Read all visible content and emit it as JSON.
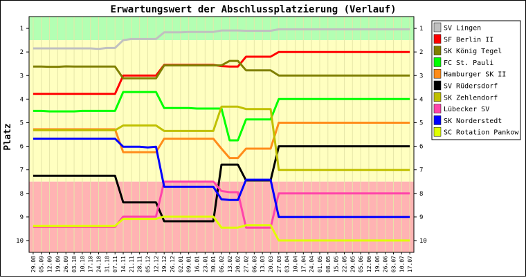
{
  "chart_data": {
    "type": "line",
    "title": "Erwartungswert der Abschlussplatzierung (Verlauf)",
    "ylabel": "Platz",
    "ylim": [
      10.5,
      0.5
    ],
    "y_ticks": [
      "1",
      "2",
      "3",
      "4",
      "5",
      "6",
      "7",
      "8",
      "9",
      "10"
    ],
    "zones": [
      {
        "from": 0.5,
        "to": 1.5,
        "color": "#b3ffb3"
      },
      {
        "from": 1.5,
        "to": 7.5,
        "color": "#ffffc0"
      },
      {
        "from": 7.5,
        "to": 10.5,
        "color": "#ffb3b3"
      }
    ],
    "categories": [
      "29.08",
      "05.09",
      "12.09",
      "19.09",
      "26.09",
      "03.10",
      "10.10",
      "17.10",
      "24.10",
      "31.10",
      "07.11",
      "14.11",
      "21.11",
      "28.11",
      "05.12",
      "12.12",
      "19.12",
      "26.12",
      "02.01",
      "09.01",
      "16.01",
      "23.01",
      "30.01",
      "06.02",
      "13.02",
      "20.02",
      "27.02",
      "06.03",
      "13.03",
      "20.03",
      "27.03",
      "03.04",
      "10.04",
      "17.04",
      "24.04",
      "01.05",
      "08.05",
      "15.05",
      "22.05",
      "29.05",
      "05.06",
      "12.06",
      "19.06",
      "26.06",
      "03.07",
      "10.07",
      "17.07"
    ],
    "series": [
      {
        "name": "SV Lingen",
        "color": "#c0c0c0",
        "values": [
          1.85,
          1.85,
          1.85,
          1.85,
          1.85,
          1.85,
          1.85,
          1.85,
          1.87,
          1.83,
          1.83,
          1.5,
          1.45,
          1.45,
          1.45,
          1.45,
          1.17,
          1.17,
          1.17,
          1.15,
          1.15,
          1.15,
          1.15,
          1.09,
          1.09,
          1.09,
          1.1,
          1.1,
          1.1,
          1.1,
          1.04,
          1.04,
          1.04,
          1.04,
          1.04,
          1.04,
          1.04,
          1.04,
          1.04,
          1.04,
          1.04,
          1.04,
          1.04,
          1.04,
          1.04,
          1.04,
          1.04
        ]
      },
      {
        "name": "SF Berlin II",
        "color": "#ff0000",
        "values": [
          3.78,
          3.78,
          3.78,
          3.78,
          3.78,
          3.78,
          3.78,
          3.78,
          3.78,
          3.78,
          3.78,
          3.0,
          3.0,
          3.0,
          3.0,
          3.0,
          2.55,
          2.55,
          2.55,
          2.55,
          2.55,
          2.55,
          2.55,
          2.6,
          2.62,
          2.62,
          2.2,
          2.2,
          2.2,
          2.2,
          2.0,
          2.0,
          2.0,
          2.0,
          2.0,
          2.0,
          2.0,
          2.0,
          2.0,
          2.0,
          2.0,
          2.0,
          2.0,
          2.0,
          2.0,
          2.0,
          2.0
        ]
      },
      {
        "name": "SK König Tegel",
        "color": "#808000",
        "values": [
          2.62,
          2.62,
          2.63,
          2.63,
          2.61,
          2.62,
          2.62,
          2.62,
          2.62,
          2.62,
          2.62,
          3.12,
          3.12,
          3.12,
          3.12,
          3.12,
          2.57,
          2.57,
          2.57,
          2.57,
          2.57,
          2.57,
          2.57,
          2.57,
          2.38,
          2.38,
          2.78,
          2.78,
          2.78,
          2.78,
          3.0,
          3.0,
          3.0,
          3.0,
          3.0,
          3.0,
          3.0,
          3.0,
          3.0,
          3.0,
          3.0,
          3.0,
          3.0,
          3.0,
          3.0,
          3.0,
          3.0
        ]
      },
      {
        "name": "FC St. Pauli",
        "color": "#00ff00",
        "values": [
          4.5,
          4.5,
          4.52,
          4.52,
          4.52,
          4.52,
          4.5,
          4.5,
          4.5,
          4.5,
          4.5,
          3.7,
          3.7,
          3.7,
          3.7,
          3.7,
          4.38,
          4.38,
          4.38,
          4.38,
          4.4,
          4.4,
          4.4,
          4.4,
          5.75,
          5.75,
          4.86,
          4.86,
          4.86,
          4.86,
          4.0,
          4.0,
          4.0,
          4.0,
          4.0,
          4.0,
          4.0,
          4.0,
          4.0,
          4.0,
          4.0,
          4.0,
          4.0,
          4.0,
          4.0,
          4.0,
          4.0
        ]
      },
      {
        "name": "Hamburger SK II",
        "color": "#ff8c1a",
        "values": [
          5.28,
          5.28,
          5.28,
          5.28,
          5.28,
          5.28,
          5.28,
          5.28,
          5.28,
          5.28,
          5.28,
          6.25,
          6.25,
          6.25,
          6.25,
          6.25,
          5.68,
          5.68,
          5.68,
          5.68,
          5.68,
          5.68,
          5.68,
          6.1,
          6.5,
          6.5,
          6.1,
          6.1,
          6.1,
          6.1,
          5.0,
          5.0,
          5.0,
          5.0,
          5.0,
          5.0,
          5.0,
          5.0,
          5.0,
          5.0,
          5.0,
          5.0,
          5.0,
          5.0,
          5.0,
          5.0,
          5.0
        ]
      },
      {
        "name": "SV Rüdersdorf",
        "color": "#000000",
        "values": [
          7.25,
          7.25,
          7.25,
          7.25,
          7.25,
          7.25,
          7.25,
          7.25,
          7.25,
          7.25,
          7.25,
          8.38,
          8.38,
          8.38,
          8.38,
          8.38,
          9.18,
          9.18,
          9.18,
          9.18,
          9.18,
          9.18,
          9.18,
          6.78,
          6.78,
          6.78,
          7.45,
          7.45,
          7.45,
          7.45,
          6.0,
          6.0,
          6.0,
          6.0,
          6.0,
          6.0,
          6.0,
          6.0,
          6.0,
          6.0,
          6.0,
          6.0,
          6.0,
          6.0,
          6.0,
          6.0,
          6.0
        ]
      },
      {
        "name": "SK Zehlendorf",
        "color": "#c0c000",
        "values": [
          5.32,
          5.32,
          5.32,
          5.32,
          5.32,
          5.32,
          5.32,
          5.32,
          5.32,
          5.32,
          5.32,
          5.12,
          5.12,
          5.12,
          5.12,
          5.12,
          5.35,
          5.35,
          5.35,
          5.35,
          5.35,
          5.35,
          5.35,
          4.32,
          4.32,
          4.32,
          4.42,
          4.42,
          4.42,
          4.42,
          7.0,
          7.0,
          7.0,
          7.0,
          7.0,
          7.0,
          7.0,
          7.0,
          7.0,
          7.0,
          7.0,
          7.0,
          7.0,
          7.0,
          7.0,
          7.0,
          7.0
        ]
      },
      {
        "name": "Lübecker SV",
        "color": "#ff44aa",
        "values": [
          9.42,
          9.42,
          9.42,
          9.42,
          9.42,
          9.42,
          9.42,
          9.42,
          9.42,
          9.42,
          9.42,
          8.98,
          8.98,
          8.98,
          8.98,
          8.98,
          7.5,
          7.5,
          7.5,
          7.5,
          7.5,
          7.5,
          7.5,
          7.9,
          7.95,
          7.95,
          9.45,
          9.45,
          9.45,
          9.45,
          8.0,
          8.0,
          8.0,
          8.0,
          8.0,
          8.0,
          8.0,
          8.0,
          8.0,
          8.0,
          8.0,
          8.0,
          8.0,
          8.0,
          8.0,
          8.0,
          8.0
        ]
      },
      {
        "name": "SK Norderstedt",
        "color": "#0000ff",
        "values": [
          5.68,
          5.68,
          5.68,
          5.68,
          5.68,
          5.68,
          5.68,
          5.68,
          5.68,
          5.68,
          5.68,
          6.02,
          6.02,
          6.02,
          6.05,
          6.02,
          7.72,
          7.72,
          7.72,
          7.72,
          7.72,
          7.72,
          7.72,
          8.25,
          8.28,
          8.28,
          7.42,
          7.42,
          7.42,
          7.42,
          9.0,
          9.0,
          9.0,
          9.0,
          9.0,
          9.0,
          9.0,
          9.0,
          9.0,
          9.0,
          9.0,
          9.0,
          9.0,
          9.0,
          9.0,
          9.0,
          9.0
        ]
      },
      {
        "name": "SC Rotation Pankow",
        "color": "#e0ff00",
        "values": [
          9.38,
          9.38,
          9.38,
          9.38,
          9.38,
          9.38,
          9.38,
          9.38,
          9.38,
          9.38,
          9.38,
          9.08,
          9.08,
          9.08,
          9.08,
          9.08,
          8.98,
          8.98,
          8.98,
          8.98,
          8.98,
          8.98,
          8.98,
          9.45,
          9.45,
          9.45,
          9.35,
          9.35,
          9.35,
          9.35,
          10.0,
          10.0,
          10.0,
          10.0,
          10.0,
          10.0,
          10.0,
          10.0,
          10.0,
          10.0,
          10.0,
          10.0,
          10.0,
          10.0,
          10.0,
          10.0,
          10.0
        ]
      }
    ]
  }
}
